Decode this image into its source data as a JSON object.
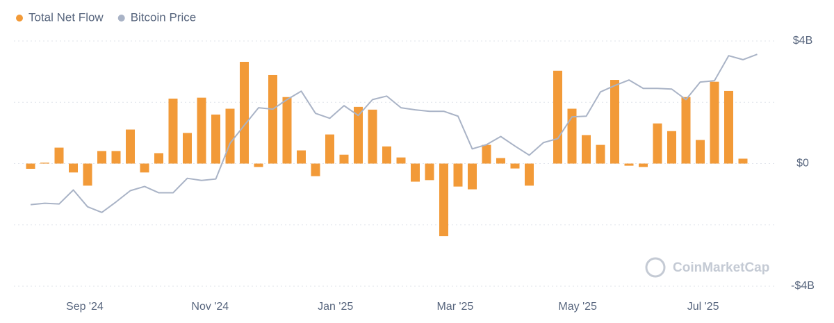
{
  "chart_data": {
    "type": "bar-line",
    "categories": [
      null,
      null,
      null,
      null,
      null,
      null,
      null,
      null,
      null,
      null,
      null,
      null,
      null,
      null,
      null,
      null,
      null,
      null,
      null,
      null,
      null,
      null,
      null,
      null,
      null,
      null,
      null,
      null,
      null,
      null,
      null,
      null,
      null,
      null,
      null,
      null,
      null,
      null,
      null,
      null,
      null,
      null,
      null,
      null,
      null,
      null,
      null,
      null,
      null,
      null,
      null,
      null
    ],
    "series": [
      {
        "name": "Total Net Flow",
        "type": "bar",
        "color": "#f29a38",
        "values": [
          -0.17,
          0.03,
          0.52,
          -0.29,
          -0.72,
          0.41,
          0.41,
          1.11,
          -0.29,
          0.34,
          2.12,
          1.0,
          2.15,
          1.6,
          1.79,
          3.32,
          -0.11,
          2.89,
          2.17,
          0.43,
          -0.41,
          0.95,
          0.29,
          1.85,
          1.76,
          0.56,
          0.2,
          -0.59,
          -0.54,
          -2.37,
          -0.75,
          -0.84,
          0.61,
          0.18,
          -0.16,
          -0.72,
          null,
          3.03,
          1.79,
          0.93,
          0.61,
          2.73,
          -0.07,
          -0.11,
          1.31,
          1.06,
          2.17,
          0.77,
          2.67,
          2.37,
          0.16,
          null
        ]
      },
      {
        "name": "Bitcoin Price",
        "type": "line",
        "axis": "y2",
        "color": "#a9b3c6",
        "values": [
          54900,
          55500,
          55200,
          61200,
          54000,
          51600,
          56100,
          60900,
          62700,
          60000,
          60000,
          66200,
          65300,
          65900,
          81200,
          88900,
          96400,
          95800,
          99900,
          103500,
          94000,
          91900,
          97300,
          93100,
          99900,
          101400,
          96400,
          95500,
          94900,
          94900,
          92800,
          78800,
          80600,
          84100,
          80000,
          76100,
          81500,
          83200,
          92500,
          92800,
          103200,
          105900,
          108300,
          104700,
          104700,
          104400,
          99900,
          107400,
          108000,
          118700,
          117000,
          119300
        ]
      }
    ],
    "ylim": [
      -4,
      4
    ],
    "yticks": [
      {
        "value": -4,
        "label": "-$4B"
      },
      {
        "value": 0,
        "label": "$0"
      },
      {
        "value": 4,
        "label": "$4B"
      }
    ],
    "minor_yticks": [
      -2,
      2
    ],
    "y2lim": [
      20000,
      125000
    ],
    "xticks": [
      {
        "value": 3.8,
        "label": "Sep '24"
      },
      {
        "value": 12.6,
        "label": "Nov '24"
      },
      {
        "value": 21.4,
        "label": "Jan '25"
      },
      {
        "value": 29.8,
        "label": "Mar '25"
      },
      {
        "value": 38.4,
        "label": "May '25"
      },
      {
        "value": 47.2,
        "label": "Jul '25"
      }
    ],
    "grid": true,
    "legend": "top-left",
    "watermark": "CoinMarketCap"
  }
}
